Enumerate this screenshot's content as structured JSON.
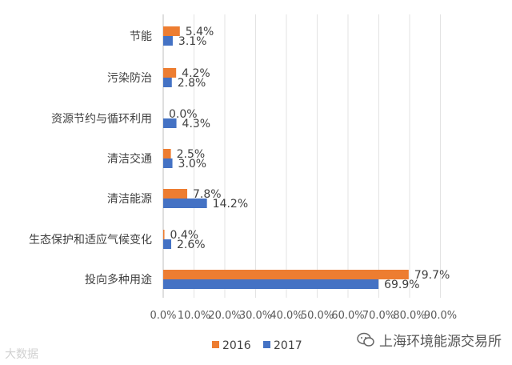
{
  "chart_data": {
    "type": "bar",
    "orientation": "horizontal",
    "categories": [
      "节能",
      "污染防治",
      "资源节约与循环利用",
      "清洁交通",
      "清洁能源",
      "生态保护和适应气候变化",
      "投向多种用途"
    ],
    "series": [
      {
        "name": "2016",
        "color": "#ed7d31",
        "values": [
          5.4,
          4.2,
          0.0,
          2.5,
          7.8,
          0.4,
          79.7
        ],
        "labels": [
          "5.4%",
          "4.2%",
          "0.0%",
          "2.5%",
          "7.8%",
          "0.4%",
          "79.7%"
        ]
      },
      {
        "name": "2017",
        "color": "#4472c4",
        "values": [
          3.1,
          2.8,
          4.3,
          3.0,
          14.2,
          2.6,
          69.9
        ],
        "labels": [
          "3.1%",
          "2.8%",
          "4.3%",
          "3.0%",
          "14.2%",
          "2.6%",
          "69.9%"
        ]
      }
    ],
    "xlim": [
      0,
      90
    ],
    "xticks": [
      "0.0%",
      "10.0%",
      "20.0%",
      "30.0%",
      "40.0%",
      "50.0%",
      "60.0%",
      "70.0%",
      "80.0%",
      "90.0%"
    ],
    "grid": "vertical",
    "legend": "bottom"
  },
  "watermarks": {
    "left": "大数据",
    "right": "上海环境能源交易所"
  },
  "icons": {
    "right": "wechat-icon"
  }
}
